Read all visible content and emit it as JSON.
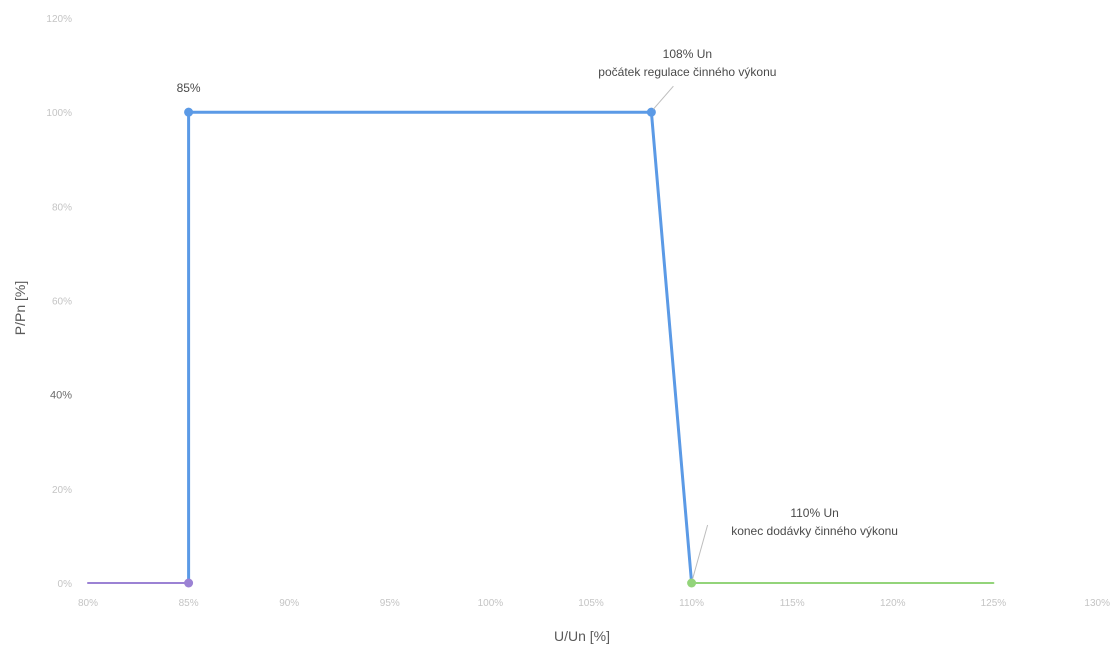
{
  "chart_data": {
    "type": "line",
    "title": "",
    "xlabel": "U/Un [%]",
    "ylabel": "P/Pn [%]",
    "xlim": [
      80,
      130
    ],
    "ylim": [
      0,
      120
    ],
    "x_ticks": [
      "80%",
      "85%",
      "90%",
      "95%",
      "100%",
      "105%",
      "110%",
      "115%",
      "120%",
      "125%",
      "130%"
    ],
    "y_ticks": [
      "0%",
      "20%",
      "40%",
      "60%",
      "80%",
      "100%",
      "120%"
    ],
    "series": [
      {
        "color": "#9b82d4",
        "points": [
          {
            "x": 80,
            "y": 0
          },
          {
            "x": 85,
            "y": 0
          }
        ],
        "markers": [
          {
            "x": 85,
            "y": 0
          }
        ]
      },
      {
        "color": "#5b9ae6",
        "points": [
          {
            "x": 85,
            "y": 0
          },
          {
            "x": 85,
            "y": 100
          },
          {
            "x": 108,
            "y": 100
          },
          {
            "x": 110,
            "y": 0
          }
        ],
        "markers": [
          {
            "x": 85,
            "y": 100
          },
          {
            "x": 108,
            "y": 100
          }
        ]
      },
      {
        "color": "#93d47a",
        "points": [
          {
            "x": 110,
            "y": 0
          },
          {
            "x": 125,
            "y": 0
          }
        ],
        "markers": [
          {
            "x": 110,
            "y": 0
          }
        ]
      }
    ],
    "annotations": [
      {
        "x": 85,
        "y": 100,
        "lines": [
          "85%"
        ],
        "leader": false
      },
      {
        "x": 108,
        "y": 100,
        "lines": [
          "108% Un",
          "počátek regulace činného výkonu"
        ],
        "leader": true
      },
      {
        "x": 110,
        "y": 0,
        "lines": [
          "110% Un",
          "konec dodávky činného výkonu"
        ],
        "leader": true
      }
    ]
  }
}
